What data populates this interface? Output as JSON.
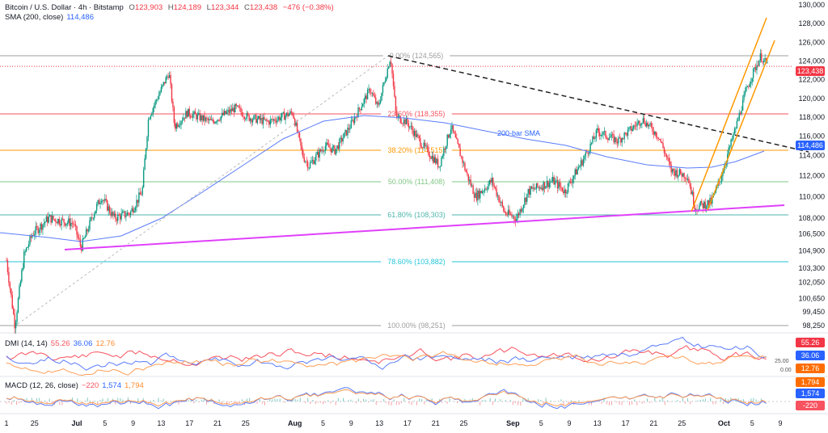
{
  "header": {
    "symbol": "Bitcoin / U.S. Dollar · 4h · Bitstamp",
    "open_label": "O",
    "open": "123,903",
    "high_label": "H",
    "high": "124,189",
    "low_label": "L",
    "low": "123,344",
    "close_label": "C",
    "close": "123,438",
    "change": "−476 (−0.38%)",
    "sma_label": "SMA (200, close)",
    "sma_value": "114,486"
  },
  "dmi": {
    "label": "DMI (14, 14)",
    "v1": "55.26",
    "v2": "36.06",
    "v3": "12.76",
    "axis": [
      "25.00",
      "0.00"
    ]
  },
  "macd": {
    "label": "MACD (12, 26, close)",
    "hist": "−220",
    "macd": "1,574",
    "signal": "1,794"
  },
  "badges": {
    "price": "123,438",
    "sma": "114,486",
    "dmi1": "55.26",
    "dmi2": "36.06",
    "dmi3": "12.76",
    "macd_signal": "1,794",
    "macd_line": "1,574",
    "macd_hist": "-220"
  },
  "colors": {
    "up": "#089981",
    "down": "#f23645",
    "sma": "#5b7cfa",
    "magenta": "#e040fb",
    "channel": "#ff9800"
  },
  "chart_data": {
    "type": "candlestick",
    "title": "Bitcoin / U.S. Dollar · 4h · Bitstamp",
    "x_ticks": [
      {
        "day": 0,
        "label": "1"
      },
      {
        "day": 4,
        "label": "25"
      },
      {
        "day": 10,
        "label": "Jul"
      },
      {
        "day": 14,
        "label": "5"
      },
      {
        "day": 18,
        "label": "9"
      },
      {
        "day": 22,
        "label": "13"
      },
      {
        "day": 26,
        "label": "17"
      },
      {
        "day": 30,
        "label": "21"
      },
      {
        "day": 34,
        "label": "25"
      },
      {
        "day": 41,
        "label": "Aug"
      },
      {
        "day": 45,
        "label": "5"
      },
      {
        "day": 49,
        "label": "9"
      },
      {
        "day": 53,
        "label": "13"
      },
      {
        "day": 57,
        "label": "17"
      },
      {
        "day": 61,
        "label": "21"
      },
      {
        "day": 65,
        "label": "25"
      },
      {
        "day": 72,
        "label": "Sep"
      },
      {
        "day": 76,
        "label": "5"
      },
      {
        "day": 80,
        "label": "9"
      },
      {
        "day": 84,
        "label": "13"
      },
      {
        "day": 88,
        "label": "17"
      },
      {
        "day": 92,
        "label": "21"
      },
      {
        "day": 96,
        "label": "25"
      },
      {
        "day": 102,
        "label": "Oct"
      },
      {
        "day": 106,
        "label": "5"
      },
      {
        "day": 110,
        "label": "9"
      }
    ],
    "y_ticks": [
      "130,000",
      "128,000",
      "126,000",
      "124,000",
      "122,000",
      "120,000",
      "118,000",
      "116,000",
      "114,000",
      "112,000",
      "110,000",
      "108,000",
      "106,500",
      "104,900",
      "103,300",
      "102,050",
      "100,650",
      "99,450",
      "98,250"
    ],
    "y_tick_values": [
      130000,
      128000,
      126000,
      124000,
      122000,
      120000,
      118000,
      116000,
      114000,
      112000,
      110000,
      108000,
      106500,
      104900,
      103300,
      102050,
      100650,
      99450,
      98250
    ],
    "ylim": [
      98250,
      130000
    ],
    "price_path": [
      [
        0,
        104000
      ],
      [
        1.2,
        98250
      ],
      [
        2.5,
        104500
      ],
      [
        3.7,
        106500
      ],
      [
        6,
        108000
      ],
      [
        9.5,
        107500
      ],
      [
        10.6,
        105200
      ],
      [
        12.4,
        108500
      ],
      [
        13.5,
        110000
      ],
      [
        15.3,
        108000
      ],
      [
        17.6,
        108500
      ],
      [
        19.3,
        110500
      ],
      [
        20.2,
        118000
      ],
      [
        23.1,
        122800
      ],
      [
        23.9,
        117000
      ],
      [
        25.7,
        118500
      ],
      [
        29.1,
        117500
      ],
      [
        32.6,
        119000
      ],
      [
        34.3,
        118000
      ],
      [
        37.2,
        117500
      ],
      [
        40.7,
        118500
      ],
      [
        42.1,
        114000
      ],
      [
        43,
        113000
      ],
      [
        45.3,
        115000
      ],
      [
        46.7,
        114500
      ],
      [
        48.8,
        117000
      ],
      [
        51.7,
        121000
      ],
      [
        52.8,
        119000
      ],
      [
        54.6,
        124500
      ],
      [
        55.4,
        118000
      ],
      [
        56.9,
        117500
      ],
      [
        59.2,
        115000
      ],
      [
        61.5,
        113000
      ],
      [
        63.2,
        117000
      ],
      [
        65.5,
        112000
      ],
      [
        66.7,
        110000
      ],
      [
        69,
        111500
      ],
      [
        70.8,
        108500
      ],
      [
        72.5,
        108000
      ],
      [
        74.2,
        110500
      ],
      [
        77.7,
        111500
      ],
      [
        79.4,
        110500
      ],
      [
        82.3,
        114000
      ],
      [
        84,
        116500
      ],
      [
        86.9,
        115500
      ],
      [
        90.4,
        117800
      ],
      [
        92.7,
        116000
      ],
      [
        94.5,
        112500
      ],
      [
        96.8,
        112000
      ],
      [
        97.9,
        109000
      ],
      [
        100.2,
        109500
      ],
      [
        101.4,
        111500
      ],
      [
        103.1,
        115500
      ],
      [
        103.7,
        117000
      ],
      [
        105.2,
        121000
      ],
      [
        106,
        122500
      ],
      [
        107.2,
        124500
      ],
      [
        108.3,
        123438
      ]
    ],
    "fib_levels": [
      {
        "label": "0.00% (124,565)",
        "price": 124565,
        "color": "#9e9e9e"
      },
      {
        "label": "23.60% (118,355)",
        "price": 118355,
        "color": "#f7525f"
      },
      {
        "label": "38.20% (114,515)",
        "price": 114515,
        "color": "#ff9800"
      },
      {
        "label": "50.00% (111,408)",
        "price": 111408,
        "color": "#81c784"
      },
      {
        "label": "61.80% (108,303)",
        "price": 108303,
        "color": "#4db6ac"
      },
      {
        "label": "78.60% (103,882)",
        "price": 103882,
        "color": "#26c6da"
      },
      {
        "label": "100.00% (98,251)",
        "price": 98251,
        "color": "#9e9e9e"
      }
    ],
    "sma_label": "200-bar SMA",
    "last_price": 123438,
    "sma_last": 114486
  }
}
